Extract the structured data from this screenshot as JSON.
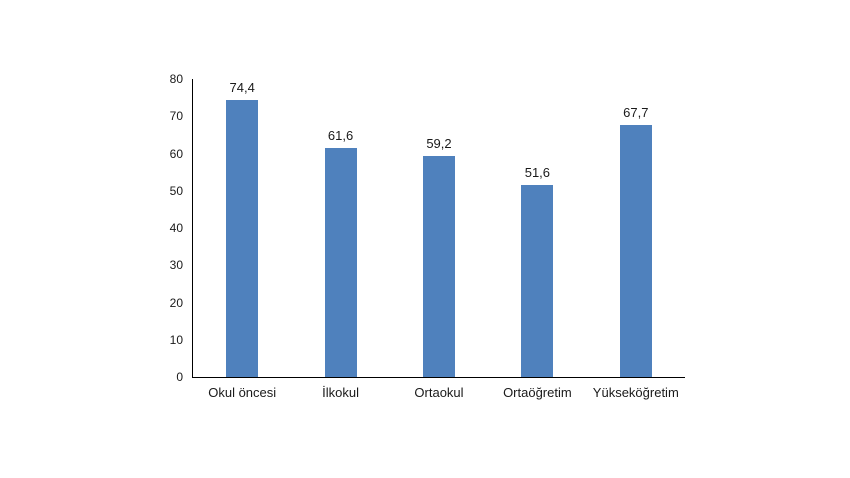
{
  "chart_data": {
    "type": "bar",
    "title": "",
    "categories": [
      "Okul öncesi",
      "İlkokul",
      "Ortaokul",
      "Ortaöğretim",
      "Yükseköğretim"
    ],
    "values": [
      74.4,
      61.6,
      59.2,
      51.6,
      67.7
    ],
    "value_labels": [
      "74,4",
      "61,6",
      "59,2",
      "51,6",
      "67,7"
    ],
    "ytick_labels": [
      "0",
      "10",
      "20",
      "30",
      "40",
      "50",
      "60",
      "70",
      "80"
    ],
    "ytick_step": 10,
    "ylim": [
      0,
      80
    ],
    "xlabel": "",
    "ylabel": "",
    "grid": false,
    "legend": null,
    "bar_color": "#4f81bd",
    "axis_color": "#000000",
    "text_color": "#1a1a1a"
  }
}
